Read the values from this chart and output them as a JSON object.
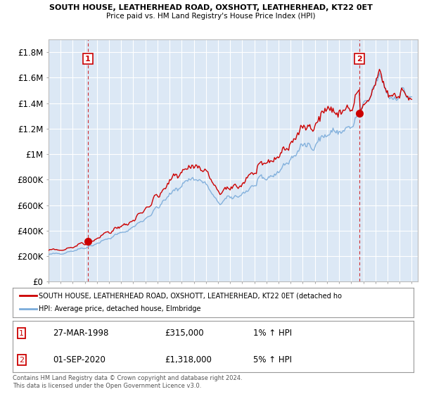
{
  "title1": "SOUTH HOUSE, LEATHERHEAD ROAD, OXSHOTT, LEATHERHEAD, KT22 0ET",
  "title2": "Price paid vs. HM Land Registry's House Price Index (HPI)",
  "ylabel_ticks": [
    "£0",
    "£200K",
    "£400K",
    "£600K",
    "£800K",
    "£1M",
    "£1.2M",
    "£1.4M",
    "£1.6M",
    "£1.8M"
  ],
  "ylabel_values": [
    0,
    200000,
    400000,
    600000,
    800000,
    1000000,
    1200000,
    1400000,
    1600000,
    1800000
  ],
  "x_start_year": 1995,
  "x_end_year": 2025,
  "sale1_date": 1998.25,
  "sale1_price": 315000,
  "sale1_label": "1",
  "sale2_date": 2020.67,
  "sale2_price": 1318000,
  "sale2_label": "2",
  "legend_line1": "SOUTH HOUSE, LEATHERHEAD ROAD, OXSHOTT, LEATHERHEAD, KT22 0ET (detached ho",
  "legend_line2": "HPI: Average price, detached house, Elmbridge",
  "footer": "Contains HM Land Registry data © Crown copyright and database right 2024.\nThis data is licensed under the Open Government Licence v3.0.",
  "bg_color": "#dce8f5",
  "grid_color": "#ffffff",
  "hpi_color": "#7aabda",
  "price_color": "#cc0000",
  "sale_marker_color": "#cc0000"
}
